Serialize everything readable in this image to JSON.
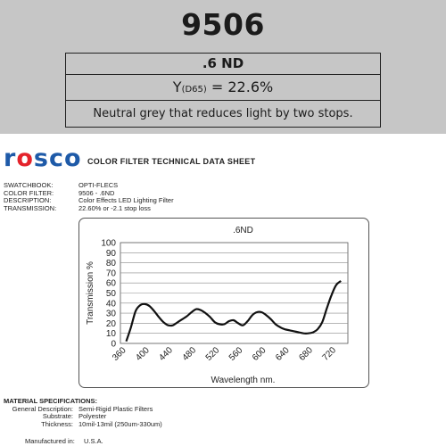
{
  "swatch": {
    "number": "9506",
    "name": ".6 ND",
    "y_prefix": "Y",
    "y_sub": "(D65)",
    "y_value": " = 22.6%",
    "description": "Neutral grey that reduces light by two stops."
  },
  "header": {
    "logo": [
      "r",
      "o",
      "s",
      "c",
      "o"
    ],
    "sheet_title": "COLOR FILTER TECHNICAL DATA SHEET"
  },
  "info": [
    {
      "label": "SWATCHBOOK:",
      "value": "OPTI-FLECS"
    },
    {
      "label": "COLOR FILTER:",
      "value": "9506 - .6ND"
    },
    {
      "label": "DESCRIPTION:",
      "value": "Color Effects LED Lighting Filter"
    },
    {
      "label": "TRANSMISSION:",
      "value": "22.60% or -2.1 stop loss"
    }
  ],
  "chart_data": {
    "type": "line",
    "title": ".6ND",
    "xlabel": "Wavelength nm.",
    "ylabel": "Transmission %",
    "xlim": [
      350,
      740
    ],
    "ylim": [
      0,
      100
    ],
    "x_ticks": [
      "360",
      "400",
      "440",
      "480",
      "520",
      "560",
      "600",
      "640",
      "680",
      "720"
    ],
    "y_ticks": [
      "100",
      "90",
      "80",
      "70",
      "60",
      "50",
      "40",
      "30",
      "20",
      "10",
      "0"
    ],
    "grid": true,
    "series": [
      {
        "x": [
          360,
          368,
          376,
          384,
          392,
          400,
          408,
          416,
          424,
          432,
          440,
          448,
          456,
          464,
          472,
          480,
          488,
          496,
          504,
          512,
          520,
          528,
          536,
          544,
          552,
          560,
          568,
          576,
          584,
          592,
          600,
          608,
          616,
          624,
          632,
          640,
          648,
          656,
          664,
          672,
          680,
          688,
          696,
          704,
          712,
          720,
          728
        ],
        "y": [
          2,
          16,
          32,
          38,
          39,
          37,
          32,
          26,
          21,
          18,
          18,
          21,
          24,
          27,
          31,
          34,
          33,
          30,
          26,
          21,
          19,
          19,
          22,
          23,
          20,
          18,
          22,
          28,
          31,
          31,
          28,
          24,
          19,
          16,
          14,
          13,
          12,
          11,
          10,
          10,
          11,
          14,
          21,
          35,
          48,
          58,
          62
        ]
      }
    ]
  },
  "material": {
    "heading": "MATERIAL SPECIFICATIONS:",
    "rows": [
      {
        "label": "General Description:",
        "value": "Semi-Rigid Plastic Filters"
      },
      {
        "label": "Substrate:",
        "value": "Polyester"
      },
      {
        "label": "Thickness:",
        "value": "10mil-13mil (250um-330um)"
      }
    ],
    "manufactured_label": "Manufactured in:",
    "manufactured_value": "U.S.A."
  }
}
